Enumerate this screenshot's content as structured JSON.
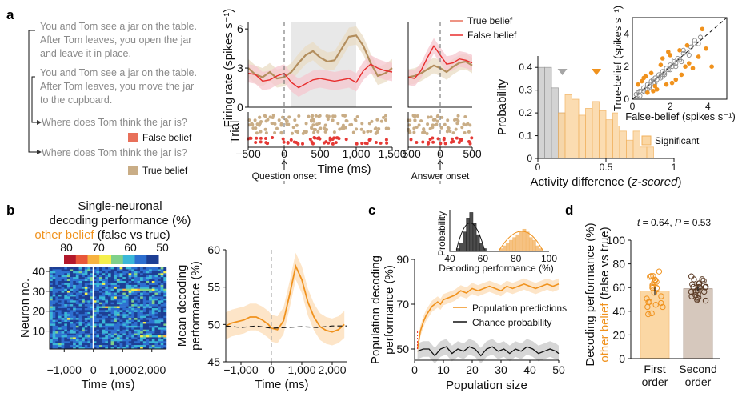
{
  "panel_letters": [
    "a",
    "b",
    "c",
    "d"
  ],
  "panel_a": {
    "story1": [
      "You and Tom see a jar on the table.",
      "After Tom leaves, you open the jar",
      "and leave it in place."
    ],
    "story2": [
      "You and Tom see a jar on the table.",
      "After Tom leaves, you move the jar",
      "to the cupboard."
    ],
    "question": "Where does Tom think the jar is?",
    "false_label": "False belief",
    "true_label": "True belief",
    "colors": {
      "false": "#e8705a",
      "true": "#c9ad86"
    }
  },
  "chart_data": [
    {
      "id": "a_question_firing",
      "type": "line",
      "ylabel": "Firing rate (spikes s⁻¹)",
      "xlabel": "Time (ms)",
      "event_label": "Question onset",
      "xlim": [
        -500,
        1500
      ],
      "ylim": [
        0,
        6.5
      ],
      "xticks": [
        "−500",
        "0",
        "500",
        "1,000",
        "1,500"
      ],
      "yticks": [
        "0",
        "3",
        "6"
      ],
      "shaded_window": [
        100,
        1000
      ],
      "series": [
        {
          "name": "True belief",
          "color": "#b38e5d",
          "x": [
            -500,
            -400,
            -300,
            -200,
            -100,
            0,
            100,
            200,
            300,
            400,
            500,
            600,
            700,
            800,
            900,
            1000,
            1100,
            1200,
            1300,
            1400,
            1500
          ],
          "y": [
            3.0,
            2.5,
            2.3,
            2.7,
            2.2,
            2.3,
            2.7,
            3.4,
            4.0,
            4.3,
            3.8,
            3.5,
            3.6,
            4.5,
            5.4,
            5.5,
            4.7,
            3.4,
            2.4,
            2.6,
            3.0
          ]
        },
        {
          "name": "False belief",
          "color": "#e82c2c",
          "x": [
            -500,
            -400,
            -300,
            -200,
            -100,
            0,
            100,
            200,
            300,
            400,
            500,
            600,
            700,
            800,
            900,
            1000,
            1100,
            1200,
            1300,
            1400,
            1500
          ],
          "y": [
            2.6,
            2.5,
            2.0,
            2.1,
            2.4,
            2.6,
            1.9,
            1.5,
            1.8,
            2.1,
            2.2,
            2.1,
            2.0,
            2.1,
            2.2,
            1.9,
            2.8,
            3.3,
            3.0,
            2.8,
            2.7
          ]
        }
      ],
      "raster_label": "Trial"
    },
    {
      "id": "a_answer_firing",
      "type": "line",
      "event_label": "Answer onset",
      "xlim": [
        -500,
        500
      ],
      "ylim": [
        0,
        6.5
      ],
      "xticks": [
        "−500",
        "0",
        "500"
      ],
      "series": [
        {
          "name": "True belief",
          "color": "#b38e5d",
          "x": [
            -500,
            -400,
            -300,
            -200,
            -100,
            0,
            100,
            200,
            300,
            400,
            500
          ],
          "y": [
            2.3,
            2.4,
            2.6,
            2.9,
            3.2,
            3.0,
            2.7,
            3.1,
            3.4,
            3.5,
            3.2
          ]
        },
        {
          "name": "False belief",
          "color": "#e82c2c",
          "x": [
            -500,
            -400,
            -300,
            -200,
            -100,
            0,
            100,
            200,
            300,
            400,
            500
          ],
          "y": [
            2.3,
            2.2,
            2.8,
            3.8,
            4.7,
            4.0,
            3.3,
            3.4,
            3.7,
            3.6,
            3.4
          ]
        }
      ],
      "legend": [
        "True belief",
        "False belief"
      ]
    },
    {
      "id": "a_histogram",
      "type": "bar",
      "xlabel": "Activity difference (z-scored)",
      "ylabel": "Probability",
      "xlim": [
        0,
        1
      ],
      "ylim": [
        0,
        0.45
      ],
      "xticks": [
        "0",
        "0.5",
        "1"
      ],
      "yticks": [
        "0",
        "0.1",
        "0.2",
        "0.3",
        "0.4"
      ],
      "bin_width": 0.05,
      "series": [
        {
          "name": "",
          "color": "#cfcfcf",
          "bin_starts": [
            0.0,
            0.05,
            0.1,
            0.15
          ],
          "values": [
            0.4,
            0.4,
            0.31,
            0.2
          ]
        },
        {
          "name": "Significant",
          "color": "#fbd7a4",
          "bin_starts": [
            0.15,
            0.2,
            0.25,
            0.3,
            0.35,
            0.4,
            0.45,
            0.5,
            0.55,
            0.6,
            0.65,
            0.7,
            0.75,
            0.8
          ],
          "values": [
            0.2,
            0.28,
            0.26,
            0.19,
            0.22,
            0.25,
            0.21,
            0.17,
            0.2,
            0.12,
            0.08,
            0.12,
            0.05,
            0.05
          ]
        }
      ],
      "markers": [
        {
          "x": 0.18,
          "color": "#a6a6a6"
        },
        {
          "x": 0.43,
          "color": "#f0921d"
        }
      ],
      "legend": [
        "Significant"
      ]
    },
    {
      "id": "a_scatter",
      "type": "scatter",
      "xlabel": "False-belief (spikes s⁻¹)",
      "ylabel": "True-belief (spikes s⁻¹)",
      "xlim": [
        0,
        5
      ],
      "ylim": [
        0,
        5
      ],
      "xticks": [
        "0",
        "2",
        "4"
      ],
      "yticks": [
        "0",
        "2",
        "4"
      ],
      "series": [
        {
          "name": "",
          "color": "#8a8a8a",
          "x": [
            0.2,
            0.3,
            0.4,
            0.5,
            0.6,
            0.7,
            0.8,
            0.9,
            1.0,
            1.1,
            1.2,
            1.3,
            1.4,
            1.5,
            1.6,
            1.7,
            1.8,
            1.9,
            2.0,
            2.1,
            2.2,
            2.3,
            2.4,
            2.5,
            2.7,
            2.9,
            3.1,
            3.3,
            3.6,
            0.4,
            0.6,
            0.9,
            1.2,
            1.5,
            1.7,
            2.0,
            2.3,
            2.6,
            3.0,
            0.3,
            0.8,
            1.1,
            1.6,
            2.2,
            3.5,
            3.3,
            2.7
          ],
          "y": [
            0.3,
            0.25,
            0.5,
            0.45,
            0.7,
            0.6,
            0.9,
            0.8,
            1.1,
            1.0,
            1.3,
            1.2,
            1.5,
            1.4,
            1.7,
            1.6,
            1.9,
            1.8,
            2.1,
            2.0,
            2.3,
            2.2,
            2.5,
            2.4,
            2.8,
            2.9,
            3.2,
            3.4,
            3.8,
            0.2,
            0.5,
            0.7,
            1.0,
            1.3,
            1.5,
            1.8,
            2.0,
            2.3,
            2.7,
            0.4,
            0.6,
            1.2,
            1.4,
            2.4,
            3.4,
            3.6,
            3.0
          ]
        },
        {
          "name": "",
          "color": "#f0921d",
          "x": [
            0.5,
            0.8,
            1.0,
            1.3,
            1.5,
            1.8,
            2.0,
            2.3,
            2.6,
            2.9,
            3.2,
            3.5,
            3.9,
            4.2,
            0.7,
            1.1,
            1.6,
            2.1,
            2.5,
            3.0,
            0.3,
            0.6,
            1.2,
            1.9,
            2.8,
            3.7
          ],
          "y": [
            1.1,
            0.4,
            1.6,
            0.6,
            2.1,
            0.9,
            2.7,
            1.2,
            1.5,
            3.3,
            1.9,
            2.6,
            3.1,
            2.0,
            1.4,
            0.5,
            2.5,
            1.0,
            3.0,
            2.2,
            0.9,
            1.3,
            0.8,
            2.9,
            2.0,
            4.3
          ]
        }
      ],
      "diagonal": true
    },
    {
      "id": "b_heatmap",
      "type": "heatmap",
      "title_lines": [
        "Single-neuronal",
        "decoding performance (%)"
      ],
      "subtitle_colored": "other belief",
      "subtitle_rest": " (false vs true)",
      "colorbar_ticks": [
        "80",
        "70",
        "60",
        "50"
      ],
      "ylabel": "Neuron no.",
      "xlabel": "Time (ms)",
      "xlim": [
        -1500,
        2500
      ],
      "ylim": [
        1,
        42
      ],
      "xticks": [
        "−1,000",
        "0",
        "1,000",
        "2,000"
      ],
      "yticks": [
        "10",
        "20",
        "30",
        "40"
      ]
    },
    {
      "id": "b_mean_decoding",
      "type": "line",
      "ylabel": "Mean decoding performance (%)",
      "xlabel": "Time (ms)",
      "xlim": [
        -1500,
        2500
      ],
      "ylim": [
        45,
        60
      ],
      "xticks": [
        "−1,000",
        "0",
        "1,000",
        "2,000"
      ],
      "yticks": [
        "45",
        "50",
        "55",
        "60"
      ],
      "series": [
        {
          "name": "",
          "color": "#f0921d",
          "x": [
            -1500,
            -1300,
            -1100,
            -900,
            -700,
            -500,
            -300,
            -100,
            0,
            200,
            400,
            600,
            800,
            1000,
            1200,
            1400,
            1600,
            1800,
            2000,
            2200,
            2400
          ],
          "y": [
            49.8,
            50.2,
            50.4,
            50.6,
            51.0,
            51.0,
            50.6,
            50.0,
            49.5,
            49.3,
            50.5,
            54.0,
            57.8,
            56.0,
            53.0,
            51.0,
            49.7,
            49.2,
            49.0,
            49.3,
            50.0
          ]
        },
        {
          "name": "",
          "color": "#111111",
          "dashed": true,
          "x": [
            -1500,
            -1000,
            -500,
            0,
            500,
            1000,
            1500,
            2000,
            2500
          ],
          "y": [
            49.8,
            49.6,
            49.8,
            49.5,
            49.6,
            49.7,
            49.6,
            49.8,
            49.8
          ]
        }
      ]
    },
    {
      "id": "c_population",
      "type": "line",
      "ylabel": "Population decoding performance (%)",
      "xlabel": "Population size",
      "xlim": [
        0,
        50
      ],
      "ylim": [
        45,
        90
      ],
      "xticks": [
        "0",
        "10",
        "20",
        "30",
        "40",
        "50"
      ],
      "yticks": [
        "50",
        "70",
        "90"
      ],
      "legend": [
        "Population predictions",
        "Chance probability"
      ],
      "series": [
        {
          "name": "Population predictions",
          "color": "#f0921d",
          "x": [
            1,
            2,
            3,
            4,
            5,
            6,
            7,
            8,
            9,
            10,
            12,
            14,
            16,
            18,
            20,
            22,
            24,
            26,
            28,
            30,
            32,
            34,
            36,
            38,
            40,
            42,
            44,
            46,
            48,
            50
          ],
          "y": [
            50,
            58,
            62,
            65,
            67,
            69,
            70,
            71,
            70,
            72,
            73,
            74,
            76,
            75,
            77,
            76,
            77,
            78,
            77,
            76,
            78,
            77,
            78,
            79,
            78,
            77,
            78,
            79,
            78,
            79
          ]
        },
        {
          "name": "Chance probability",
          "color": "#111111",
          "x": [
            1,
            3,
            5,
            7,
            9,
            11,
            13,
            15,
            17,
            19,
            21,
            23,
            25,
            27,
            29,
            31,
            33,
            35,
            37,
            39,
            41,
            43,
            45,
            47,
            49,
            50
          ],
          "y": [
            49,
            50,
            50,
            47,
            50,
            51,
            48,
            50,
            49,
            51,
            50,
            47,
            50,
            51,
            49,
            50,
            48,
            50,
            49,
            51,
            50,
            48,
            49,
            50,
            49,
            48
          ]
        }
      ]
    },
    {
      "id": "c_inset_hist",
      "type": "bar",
      "ylabel": "Probability",
      "xlabel": "Decoding performance (%)",
      "xlim": [
        40,
        100
      ],
      "xticks": [
        "40",
        "60",
        "80",
        "100"
      ],
      "series": [
        {
          "name": "",
          "color": "#444444",
          "bin_starts": [
            44,
            46,
            48,
            50,
            52,
            54,
            56,
            58,
            60
          ],
          "values": [
            1,
            3,
            7,
            12,
            14,
            10,
            6,
            3,
            1
          ]
        },
        {
          "name": "",
          "color": "#f5b464",
          "bin_starts": [
            70,
            72,
            74,
            76,
            78,
            80,
            82,
            84,
            86,
            88,
            90,
            92,
            94
          ],
          "values": [
            1,
            2,
            3,
            4,
            5,
            6,
            7,
            8,
            7,
            5,
            4,
            2,
            1
          ]
        }
      ]
    },
    {
      "id": "d_bar",
      "type": "bar",
      "annotation": "t = 0.64, P = 0.53",
      "ylabel_lines": [
        "Decoding performance (%)",
        "other belief",
        " (false vs true)"
      ],
      "categories": [
        [
          "First",
          "order"
        ],
        [
          "Second",
          "order"
        ]
      ],
      "values": [
        57,
        59
      ],
      "errors": [
        3,
        2
      ],
      "ylim": [
        0,
        100
      ],
      "yticks": [
        "0",
        "20",
        "40",
        "60",
        "80",
        "100"
      ],
      "colors": [
        "#fbd7a4",
        "#d6c8bd"
      ],
      "point_colors": [
        "#f0921d",
        "#5a3a24"
      ]
    }
  ]
}
